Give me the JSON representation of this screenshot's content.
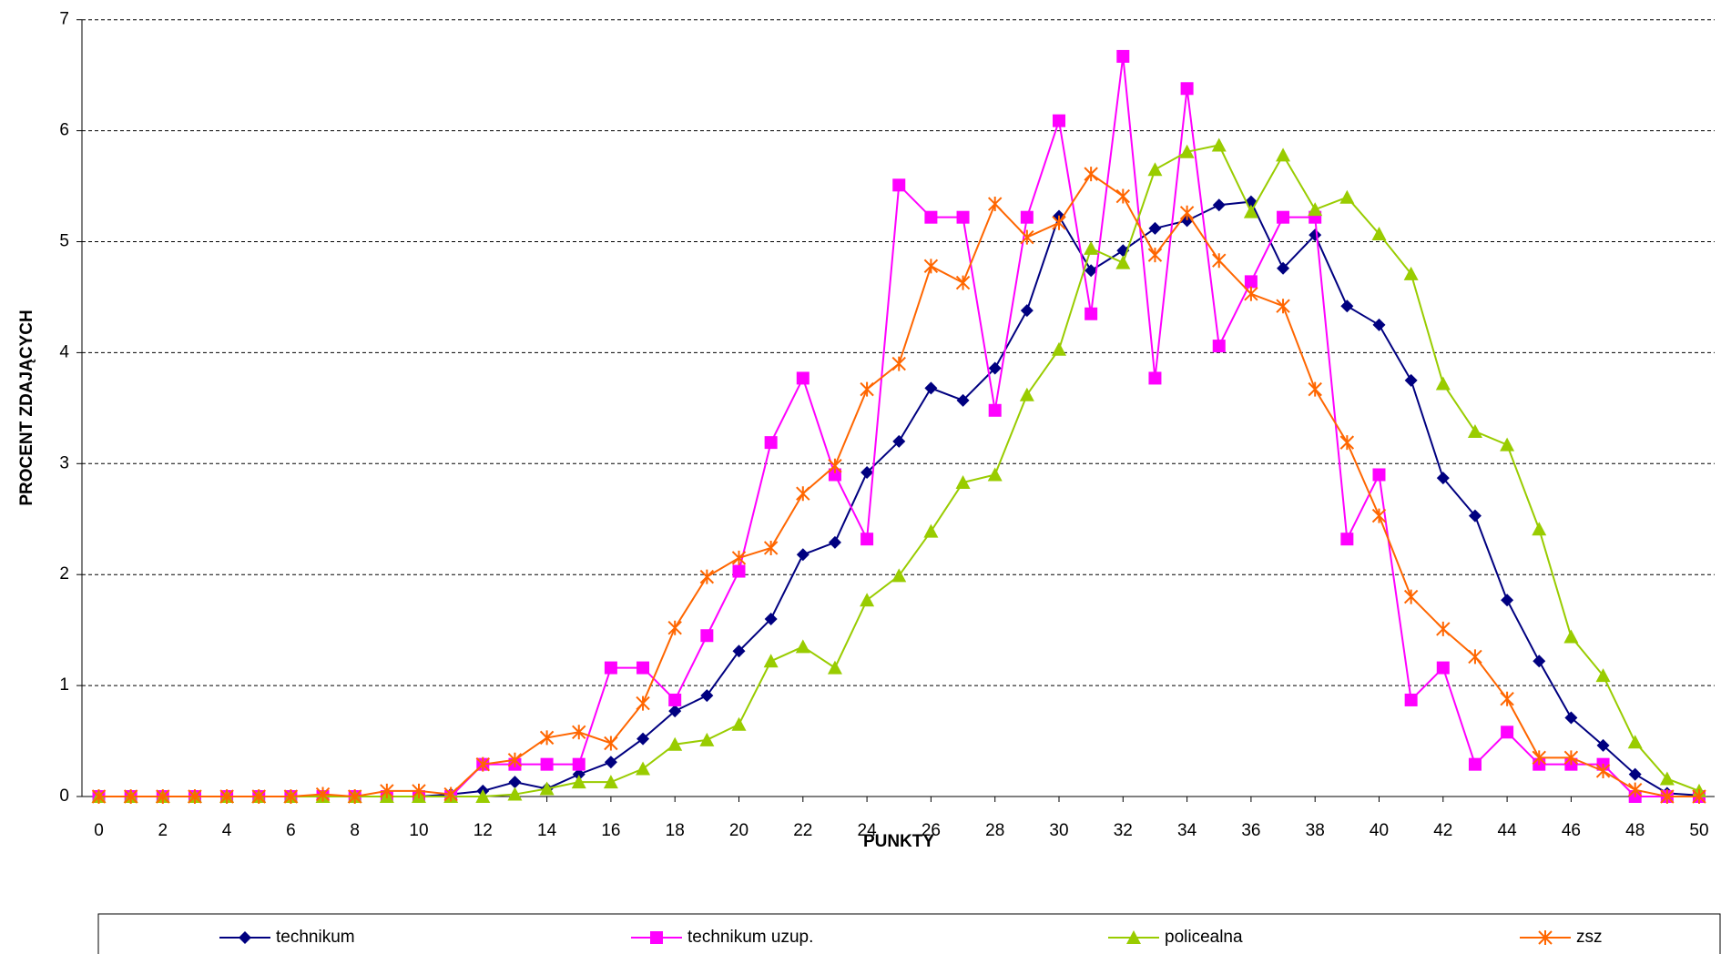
{
  "chart_data": {
    "type": "line",
    "xlabel": "PUNKTY",
    "ylabel": "PROCENT ZDAJĄCYCH",
    "x": [
      0,
      1,
      2,
      3,
      4,
      5,
      6,
      7,
      8,
      9,
      10,
      11,
      12,
      13,
      14,
      15,
      16,
      17,
      18,
      19,
      20,
      21,
      22,
      23,
      24,
      25,
      26,
      27,
      28,
      29,
      30,
      31,
      32,
      33,
      34,
      35,
      36,
      37,
      38,
      39,
      40,
      41,
      42,
      43,
      44,
      45,
      46,
      47,
      48,
      49,
      50
    ],
    "xlim": [
      0,
      50
    ],
    "xticks": [
      0,
      2,
      4,
      6,
      8,
      10,
      12,
      14,
      16,
      18,
      20,
      22,
      24,
      26,
      28,
      30,
      32,
      34,
      36,
      38,
      40,
      42,
      44,
      46,
      48,
      50
    ],
    "ylim": [
      0,
      7
    ],
    "yticks": [
      0,
      1,
      2,
      3,
      4,
      5,
      6,
      7
    ],
    "grid": true,
    "legend": "bottom",
    "series": [
      {
        "name": "technikum",
        "color": "#000080",
        "marker": "diamond",
        "values": [
          0,
          0,
          0,
          0,
          0,
          0,
          0,
          0,
          0,
          0,
          0,
          0.02,
          0.05,
          0.13,
          0.07,
          0.2,
          0.31,
          0.52,
          0.77,
          0.91,
          1.31,
          1.6,
          2.18,
          2.29,
          2.92,
          3.2,
          3.68,
          3.57,
          3.86,
          4.38,
          5.23,
          4.74,
          4.92,
          5.12,
          5.19,
          5.33,
          5.36,
          4.76,
          5.06,
          4.42,
          4.25,
          3.75,
          2.87,
          2.53,
          1.77,
          1.22,
          0.71,
          0.46,
          0.2,
          0.03,
          0.01
        ]
      },
      {
        "name": "technikum uzup.",
        "color": "#FF00FF",
        "marker": "square",
        "values": [
          0,
          0,
          0,
          0,
          0,
          0,
          0,
          0,
          0,
          0,
          0,
          0,
          0.29,
          0.29,
          0.29,
          0.29,
          1.16,
          1.16,
          0.87,
          1.45,
          2.03,
          3.19,
          3.77,
          2.9,
          2.32,
          5.51,
          5.22,
          5.22,
          3.48,
          5.22,
          6.09,
          4.35,
          6.67,
          3.77,
          6.38,
          4.06,
          4.64,
          5.22,
          5.22,
          2.32,
          2.9,
          0.87,
          1.16,
          0.29,
          0.58,
          0.29,
          0.29,
          0.29,
          0,
          0,
          0
        ]
      },
      {
        "name": "policealna",
        "color": "#99CC00",
        "marker": "triangle",
        "values": [
          0,
          0,
          0,
          0,
          0,
          0,
          0,
          0,
          0,
          0,
          0,
          0,
          0,
          0.02,
          0.07,
          0.13,
          0.13,
          0.25,
          0.47,
          0.51,
          0.65,
          1.22,
          1.35,
          1.16,
          1.77,
          1.99,
          2.39,
          2.83,
          2.9,
          3.62,
          4.03,
          4.94,
          4.81,
          5.65,
          5.81,
          5.87,
          5.27,
          5.78,
          5.29,
          5.4,
          5.07,
          4.71,
          3.72,
          3.29,
          3.17,
          2.41,
          1.44,
          1.09,
          0.49,
          0.16,
          0.05
        ]
      },
      {
        "name": "zsz",
        "color": "#FF6600",
        "marker": "asterisk",
        "values": [
          0,
          0,
          0,
          0,
          0,
          0,
          0,
          0.02,
          0,
          0.05,
          0.05,
          0.02,
          0.29,
          0.33,
          0.53,
          0.58,
          0.48,
          0.84,
          1.52,
          1.98,
          2.15,
          2.24,
          2.73,
          2.98,
          3.67,
          3.9,
          4.78,
          4.63,
          5.34,
          5.04,
          5.17,
          5.61,
          5.41,
          4.88,
          5.26,
          4.83,
          4.53,
          4.42,
          3.67,
          3.19,
          2.53,
          1.8,
          1.51,
          1.26,
          0.88,
          0.35,
          0.35,
          0.23,
          0.06,
          0,
          0
        ]
      }
    ]
  }
}
